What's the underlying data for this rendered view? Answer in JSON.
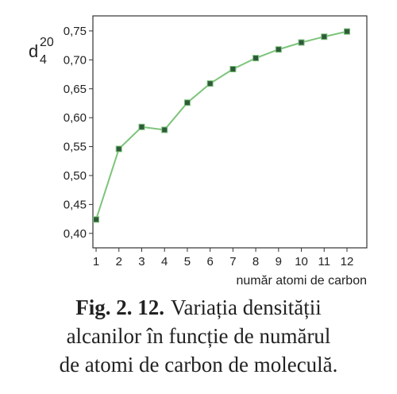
{
  "chart_data": {
    "type": "line",
    "ylabel": {
      "symbol": "d",
      "superscript": "20",
      "subscript": "4"
    },
    "xlabel": "număr atomi de carbon",
    "x": [
      1,
      2,
      3,
      4,
      5,
      6,
      7,
      8,
      9,
      10,
      11,
      12
    ],
    "series": [
      {
        "color": "#7cc47a",
        "marker_color": "#2f5a3a",
        "values": [
          0.424,
          0.546,
          0.584,
          0.579,
          0.626,
          0.659,
          0.684,
          0.703,
          0.718,
          0.73,
          0.74,
          0.749
        ]
      }
    ],
    "xlim": [
      0.86,
      12.87
    ],
    "ylim": [
      0.375,
      0.776
    ],
    "xticks": [
      1,
      2,
      3,
      4,
      5,
      6,
      7,
      8,
      9,
      10,
      11,
      12
    ],
    "yticks": [
      {
        "value": 0.4,
        "label": "0,40"
      },
      {
        "value": 0.45,
        "label": "0,45"
      },
      {
        "value": 0.5,
        "label": "0,50"
      },
      {
        "value": 0.55,
        "label": "0,55"
      },
      {
        "value": 0.6,
        "label": "0,60"
      },
      {
        "value": 0.65,
        "label": "0,65"
      },
      {
        "value": 0.7,
        "label": "0,70"
      },
      {
        "value": 0.75,
        "label": "0,75"
      }
    ],
    "grid": false,
    "caption": {
      "label": "Fig. 2. 12.",
      "lines": [
        "Variația densității",
        "alcanilor în funcție de numărul",
        "de atomi de carbon de moleculă."
      ]
    }
  }
}
